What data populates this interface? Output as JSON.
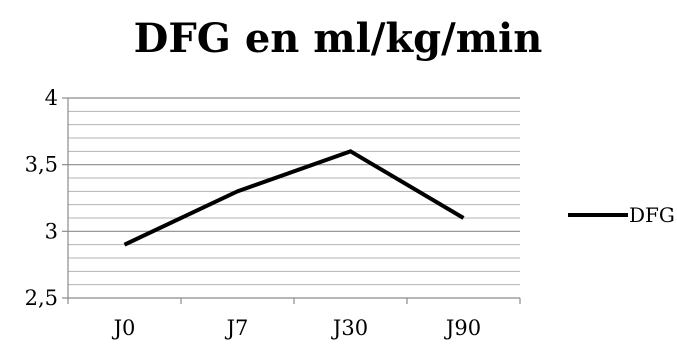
{
  "chart_data": {
    "type": "line",
    "title": "DFG en ml/kg/min",
    "xlabel": "",
    "ylabel": "",
    "categories": [
      "J0",
      "J7",
      "J30",
      "J90"
    ],
    "y_tick_labels": [
      "2,5",
      "3",
      "3,5",
      "4"
    ],
    "ylim": [
      2.5,
      4
    ],
    "y_major_step": 0.5,
    "y_minor_step": 0.1,
    "grid": true,
    "legend_position": "right",
    "series": [
      {
        "name": "DFG",
        "values": [
          2.9,
          3.3,
          3.6,
          3.1
        ],
        "color": "#000000"
      }
    ]
  }
}
